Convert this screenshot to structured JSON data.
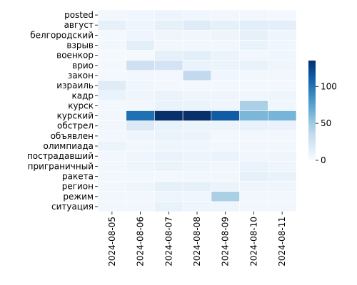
{
  "chart_data": {
    "type": "heatmap",
    "title": "",
    "xlabel": "",
    "ylabel": "",
    "x": [
      "2024-08-05",
      "2024-08-06",
      "2024-08-07",
      "2024-08-08",
      "2024-08-09",
      "2024-08-10",
      "2024-08-11"
    ],
    "y": [
      "posted",
      "август",
      "белгородский",
      "взрыв",
      "военкор",
      "врио",
      "закон",
      "израиль",
      "кадр",
      "курск",
      "курский",
      "обстрел",
      "объявлен",
      "олимпиада",
      "пострадавший",
      "приграничный",
      "ракета",
      "регион",
      "режим",
      "ситуация"
    ],
    "values": [
      [
        4,
        5,
        7,
        5,
        4,
        4,
        3
      ],
      [
        12,
        6,
        12,
        16,
        12,
        14,
        13
      ],
      [
        3,
        6,
        6,
        5,
        7,
        12,
        6
      ],
      [
        4,
        14,
        4,
        4,
        4,
        9,
        5
      ],
      [
        2,
        2,
        12,
        14,
        8,
        4,
        5
      ],
      [
        3,
        28,
        24,
        9,
        8,
        10,
        6
      ],
      [
        3,
        4,
        3,
        35,
        5,
        4,
        4
      ],
      [
        16,
        5,
        3,
        3,
        3,
        3,
        3
      ],
      [
        9,
        6,
        9,
        6,
        6,
        5,
        6
      ],
      [
        3,
        4,
        9,
        8,
        6,
        45,
        5
      ],
      [
        4,
        102,
        135,
        135,
        112,
        62,
        64
      ],
      [
        4,
        18,
        10,
        8,
        8,
        10,
        9
      ],
      [
        4,
        6,
        9,
        8,
        4,
        4,
        4
      ],
      [
        8,
        4,
        6,
        5,
        4,
        4,
        4
      ],
      [
        4,
        6,
        9,
        7,
        9,
        5,
        6
      ],
      [
        4,
        6,
        8,
        6,
        5,
        9,
        6
      ],
      [
        4,
        4,
        3,
        4,
        4,
        12,
        10
      ],
      [
        4,
        6,
        12,
        12,
        8,
        6,
        6
      ],
      [
        4,
        4,
        6,
        5,
        45,
        4,
        4
      ],
      [
        4,
        4,
        10,
        6,
        6,
        4,
        4
      ]
    ],
    "colorbar": {
      "min": 0,
      "max": 135,
      "ticks": [
        0,
        50,
        100
      ],
      "colormap": "Blues"
    },
    "grid_lines": "white"
  }
}
